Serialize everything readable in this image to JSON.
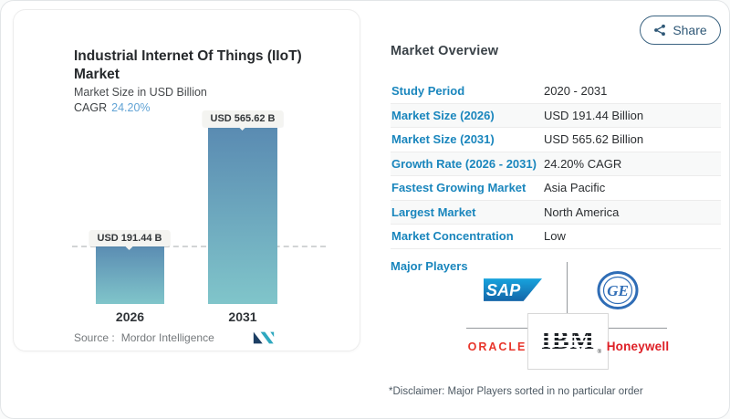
{
  "share": {
    "label": "Share"
  },
  "chart_card": {
    "title": "Industrial Internet Of Things (IIoT) Market",
    "subtitle": "Market Size in USD Billion",
    "cagr_label": "CAGR",
    "cagr_value": "24.20%",
    "source_label": "Source :",
    "source_value": "Mordor Intelligence"
  },
  "chart_data": {
    "type": "bar",
    "title": "Industrial Internet Of Things (IIoT) Market",
    "ylabel": "Market Size in USD Billion",
    "unit": "USD Billion",
    "categories": [
      "2026",
      "2031"
    ],
    "values": [
      191.44,
      565.62
    ],
    "value_labels": [
      "USD 191.44 B",
      "USD 565.62 B"
    ],
    "cagr_percent": 24.2,
    "ylim": [
      0,
      600
    ],
    "grid": false,
    "reference_line_at": 191.44,
    "reference_line_style": "dashed",
    "bar_gradient": [
      "#5a8bb2",
      "#80c5ca"
    ]
  },
  "overview": {
    "heading": "Market Overview",
    "rows": [
      {
        "label": "Study Period",
        "value": "2020 - 2031"
      },
      {
        "label": "Market Size (2026)",
        "value": "USD 191.44 Billion"
      },
      {
        "label": "Market Size (2031)",
        "value": "USD 565.62 Billion"
      },
      {
        "label": "Growth Rate (2026 - 2031)",
        "value": "24.20% CAGR"
      },
      {
        "label": "Fastest Growing Market",
        "value": "Asia Pacific"
      },
      {
        "label": "Largest Market",
        "value": "North America"
      },
      {
        "label": "Market Concentration",
        "value": "Low"
      }
    ],
    "major_players_label": "Major Players",
    "players": [
      {
        "name": "SAP",
        "color": "#1171b6"
      },
      {
        "name": "GE",
        "color": "#2f6db6"
      },
      {
        "name": "ORACLE",
        "color": "#e8352b"
      },
      {
        "name": "IBM",
        "color": "#1d2125",
        "mark": "®"
      },
      {
        "name": "Honeywell",
        "color": "#de1f26"
      }
    ],
    "disclaimer": "*Disclaimer: Major Players sorted in no particular order"
  },
  "colors": {
    "accent_blue": "#1a86bd",
    "cagr_blue": "#61a3d5",
    "title_dark": "#26292c",
    "line_gray": "#94989c"
  }
}
